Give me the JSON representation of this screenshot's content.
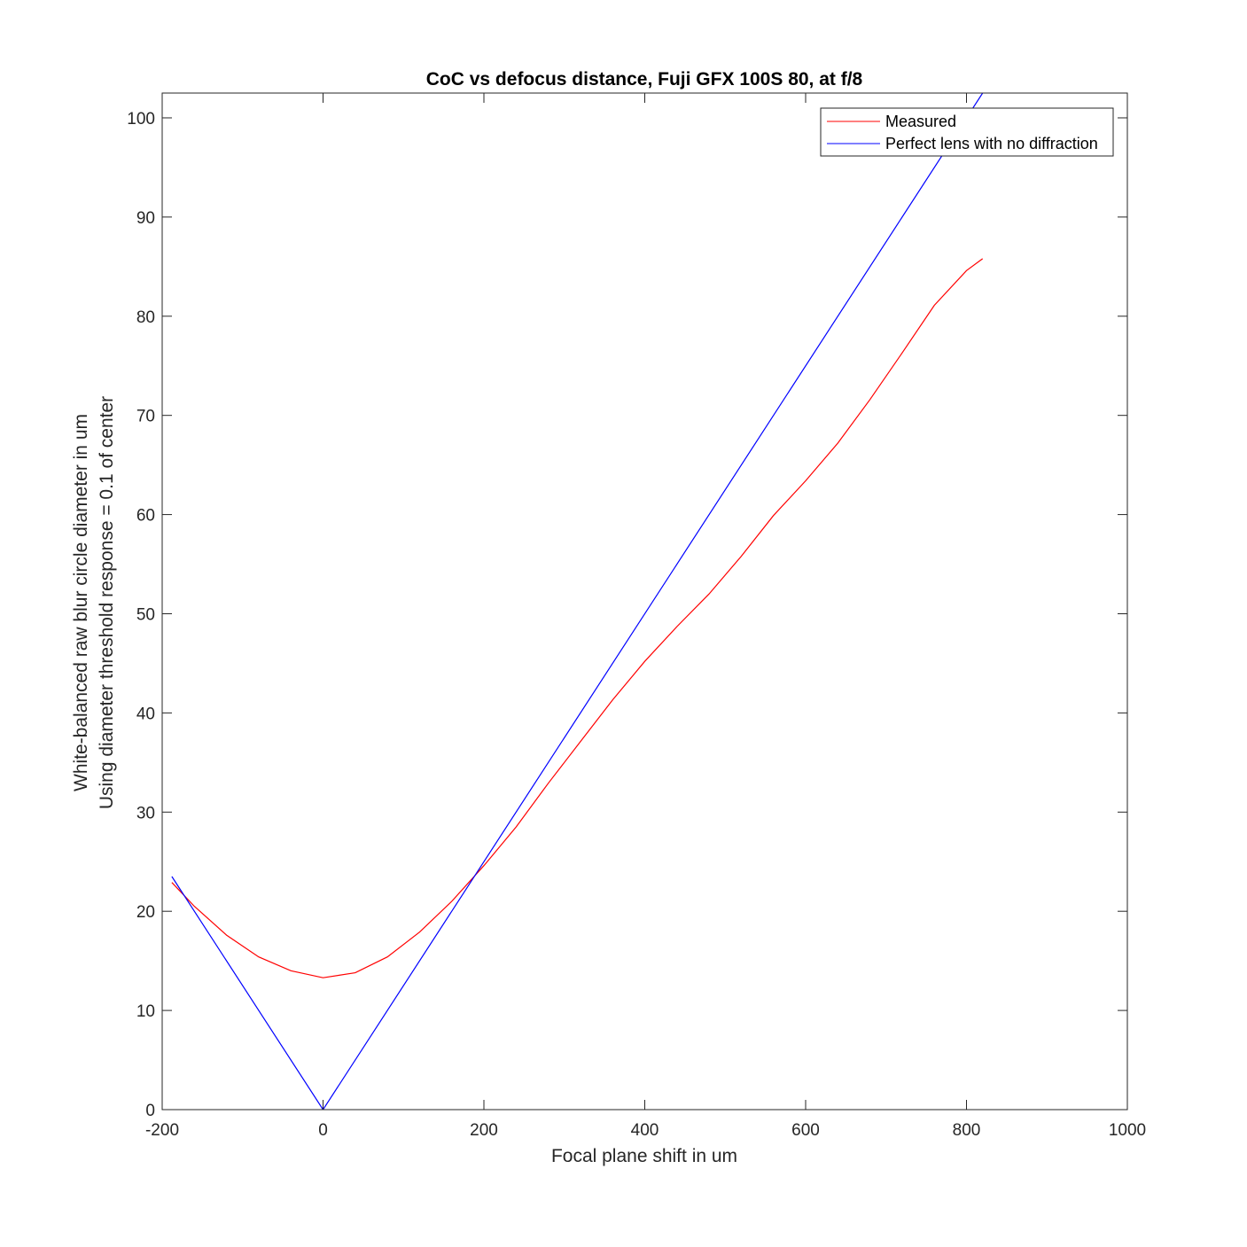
{
  "chart_data": {
    "type": "line",
    "title": "CoC vs defocus distance, Fuji GFX 100S 80, at f/8",
    "xlabel": "Focal plane shift in um",
    "ylabel": [
      "White-balanced raw blur circle diameter in um",
      "Using diameter threshold response = 0.1 of center"
    ],
    "xlim": [
      -200,
      1000
    ],
    "ylim": [
      0,
      102.5
    ],
    "xticks": [
      -200,
      0,
      200,
      400,
      600,
      800,
      1000
    ],
    "yticks": [
      0,
      10,
      20,
      30,
      40,
      50,
      60,
      70,
      80,
      90,
      100
    ],
    "xtick_labels": [
      "-200",
      "0",
      "200",
      "400",
      "600",
      "800",
      "1000"
    ],
    "ytick_labels": [
      "0",
      "10",
      "20",
      "30",
      "40",
      "50",
      "60",
      "70",
      "80",
      "90",
      "100"
    ],
    "grid": false,
    "legend": "top-right",
    "series": [
      {
        "name": "Measured",
        "color": "#ff0000",
        "x": [
          -188,
          -160,
          -120,
          -80,
          -40,
          0,
          40,
          80,
          120,
          160,
          200,
          240,
          280,
          320,
          360,
          400,
          440,
          480,
          520,
          560,
          600,
          640,
          680,
          720,
          760,
          800,
          820
        ],
        "y": [
          22.9,
          20.5,
          17.6,
          15.4,
          14.0,
          13.3,
          13.8,
          15.4,
          17.9,
          21.0,
          24.6,
          28.5,
          32.9,
          37.1,
          41.3,
          45.2,
          48.7,
          52.0,
          55.8,
          59.9,
          63.4,
          67.2,
          71.6,
          76.3,
          81.1,
          84.6,
          85.8
        ]
      },
      {
        "name": "Perfect lens with no diffraction",
        "color": "#0000ff",
        "x": [
          -188,
          0,
          820
        ],
        "y": [
          23.5,
          0,
          102.5
        ]
      }
    ]
  }
}
